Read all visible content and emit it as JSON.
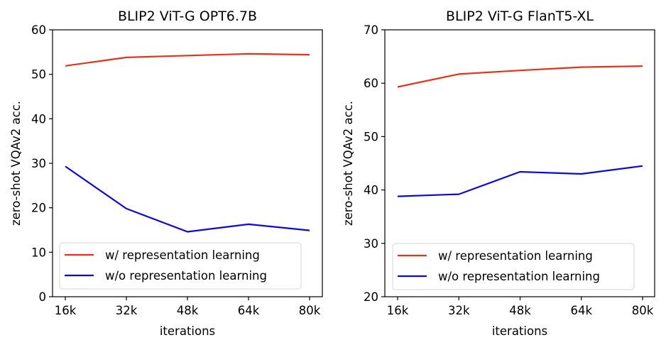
{
  "chart_data": [
    {
      "type": "line",
      "title": "BLIP2 ViT-G OPT6.7B",
      "xlabel": "iterations",
      "ylabel": "zero-shot VQAv2 acc.",
      "categories": [
        "16k",
        "32k",
        "48k",
        "64k",
        "80k"
      ],
      "ylim": [
        0,
        60
      ],
      "yticks": [
        0,
        10,
        20,
        30,
        40,
        50,
        60
      ],
      "grid": false,
      "legend_position": "lower-left",
      "series": [
        {
          "name": "w/ representation learning",
          "color": "#e8311a",
          "values": [
            51.9,
            53.8,
            54.2,
            54.6,
            54.4
          ]
        },
        {
          "name": "w/o representation learning",
          "color": "#0a0ad6",
          "values": [
            29.3,
            19.8,
            14.6,
            16.3,
            14.9
          ]
        }
      ]
    },
    {
      "type": "line",
      "title": "BLIP2 ViT-G FlanT5-XL",
      "xlabel": "iterations",
      "ylabel": "zero-shot VQAv2 acc.",
      "categories": [
        "16k",
        "32k",
        "48k",
        "64k",
        "80k"
      ],
      "ylim": [
        20,
        70
      ],
      "yticks": [
        20,
        30,
        40,
        50,
        60,
        70
      ],
      "grid": false,
      "legend_position": "lower-left",
      "series": [
        {
          "name": "w/ representation learning",
          "color": "#e8311a",
          "values": [
            59.3,
            61.7,
            62.4,
            63.0,
            63.2
          ]
        },
        {
          "name": "w/o representation learning",
          "color": "#0a0ad6",
          "values": [
            38.8,
            39.2,
            43.4,
            43.0,
            44.5
          ]
        }
      ]
    }
  ]
}
